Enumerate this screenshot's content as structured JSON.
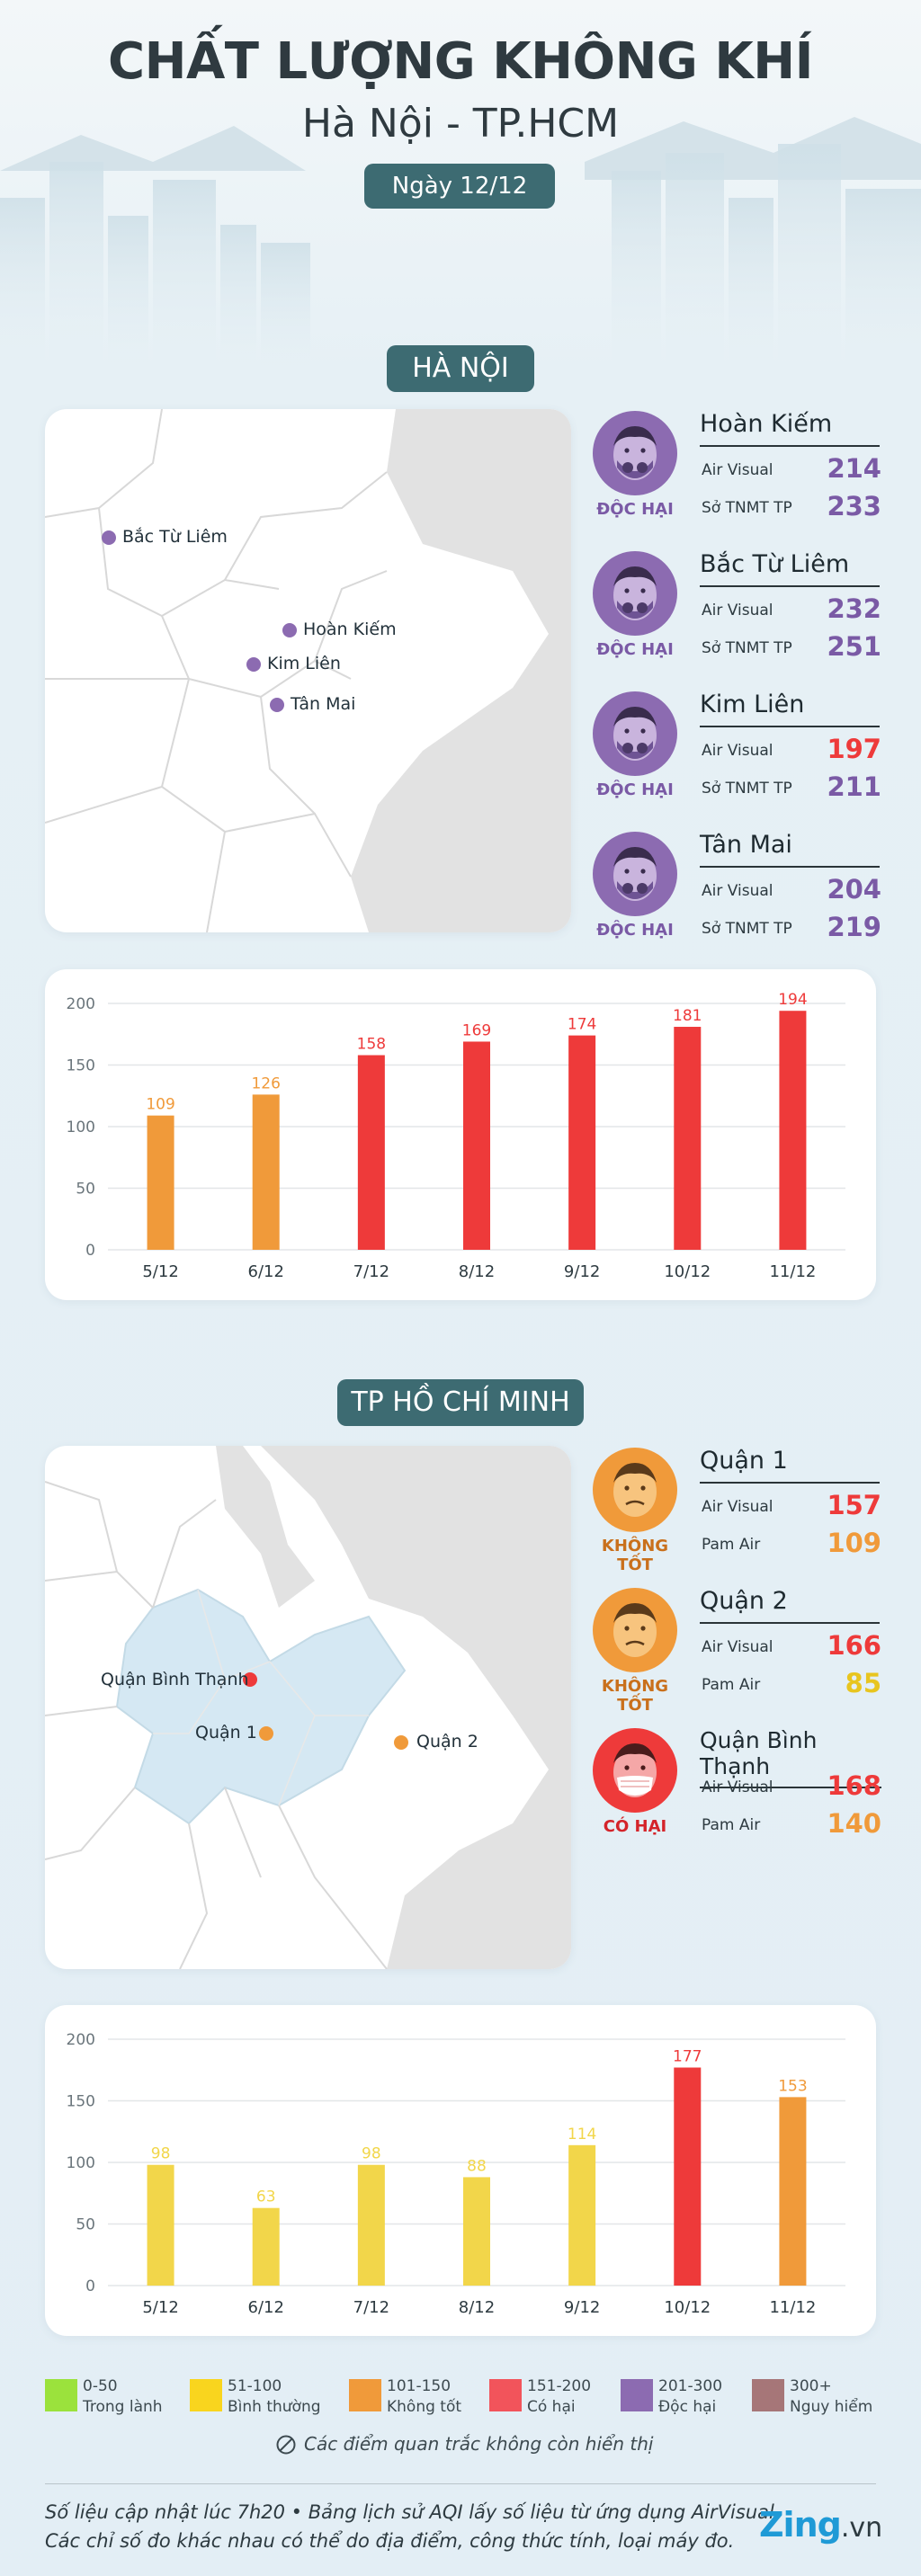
{
  "header": {
    "title": "CHẤT LƯỢNG KHÔNG KHÍ",
    "subtitle": "Hà Nội - TP.HCM",
    "date": "Ngày 12/12"
  },
  "colors": {
    "normal": "#f2d64a",
    "moderate": "#f09a3a",
    "unhealthy": "#ee3a3a",
    "very_unhealthy": "#8c6bb1",
    "violet_value": "#7a5aa5",
    "section_pill": "#3d6b72"
  },
  "hanoi": {
    "section_title": "HÀ NỘI",
    "map_labels": [
      "Bắc Từ Liêm",
      "Hoàn Kiếm",
      "Kim Liên",
      "Tân Mai"
    ],
    "stations": [
      {
        "name": "Hoàn Kiếm",
        "level": "ĐỘC HẠI",
        "icon": "masked-face-purple-icon",
        "src1": "Air Visual",
        "v1": "214",
        "src2": "Sở TNMT TP",
        "v2": "233"
      },
      {
        "name": "Bắc Từ Liêm",
        "level": "ĐỘC HẠI",
        "icon": "masked-face-purple-icon",
        "src1": "Air Visual",
        "v1": "232",
        "src2": "Sở TNMT TP",
        "v2": "251"
      },
      {
        "name": "Kim Liên",
        "level": "ĐỘC HẠI",
        "icon": "masked-face-purple-icon",
        "src1": "Air Visual",
        "v1": "197",
        "src2": "Sở TNMT TP",
        "v2": "211"
      },
      {
        "name": "Tân Mai",
        "level": "ĐỘC HẠI",
        "icon": "masked-face-purple-icon",
        "src1": "Air Visual",
        "v1": "204",
        "src2": "Sở TNMT TP",
        "v2": "219"
      }
    ]
  },
  "hcm": {
    "section_title": "TP HỒ CHÍ MINH",
    "map_labels": [
      "Quận Bình Thạnh",
      "Quận 1",
      "Quận 2"
    ],
    "stations": [
      {
        "name": "Quận 1",
        "level": "KHÔNG TỐT",
        "icon": "sad-face-orange-icon",
        "src1": "Air Visual",
        "v1": "157",
        "src2": "Pam Air",
        "v2": "109"
      },
      {
        "name": "Quận 2",
        "level": "KHÔNG TỐT",
        "icon": "sad-face-orange-icon",
        "src1": "Air Visual",
        "v1": "166",
        "src2": "Pam Air",
        "v2": "85"
      },
      {
        "name": "Quận Bình Thạnh",
        "level": "CÓ HẠI",
        "icon": "masked-face-red-icon",
        "src1": "Air Visual",
        "v1": "168",
        "src2": "Pam Air",
        "v2": "140"
      }
    ]
  },
  "chart_data": [
    {
      "type": "bar",
      "categories": [
        "5/12",
        "6/12",
        "7/12",
        "8/12",
        "9/12",
        "10/12",
        "11/12"
      ],
      "values": [
        109,
        126,
        158,
        169,
        174,
        181,
        194
      ],
      "bar_colors": [
        "#f09a3a",
        "#f09a3a",
        "#ee3a3a",
        "#ee3a3a",
        "#ee3a3a",
        "#ee3a3a",
        "#ee3a3a"
      ],
      "yticks": [
        0,
        50,
        100,
        150,
        200
      ],
      "ylim": [
        0,
        200
      ],
      "grid": true
    },
    {
      "type": "bar",
      "categories": [
        "5/12",
        "6/12",
        "7/12",
        "8/12",
        "9/12",
        "10/12",
        "11/12"
      ],
      "values": [
        98,
        63,
        98,
        88,
        114,
        177,
        153
      ],
      "bar_colors": [
        "#f2d64a",
        "#f2d64a",
        "#f2d64a",
        "#f2d64a",
        "#f2d64a",
        "#ee3a3a",
        "#f09a3a"
      ],
      "yticks": [
        0,
        50,
        100,
        150,
        200
      ],
      "ylim": [
        0,
        200
      ],
      "grid": true
    }
  ],
  "legend": [
    {
      "range": "0-50",
      "label": "Trong lành",
      "color": "#9be23c"
    },
    {
      "range": "51-100",
      "label": "Bình thường",
      "color": "#f9d51e"
    },
    {
      "range": "101-150",
      "label": "Không tốt",
      "color": "#f09a3a"
    },
    {
      "range": "151-200",
      "label": "Có hại",
      "color": "#f2545b"
    },
    {
      "range": "201-300",
      "label": "Độc hại",
      "color": "#8c6bb1"
    },
    {
      "range": "300+",
      "label": "Nguy hiểm",
      "color": "#a67678"
    }
  ],
  "notice": "Các điểm quan trắc không còn hiển thị",
  "footer": {
    "line1": "Số liệu cập nhật lúc 7h20 • Bảng lịch sử AQI lấy số liệu từ ứng dụng AirVisual",
    "line2": "Các chỉ số đo khác nhau có thể do địa điểm, công thức tính, loại máy đo.",
    "brand": "Zing",
    "brand_suffix": ".vn"
  }
}
